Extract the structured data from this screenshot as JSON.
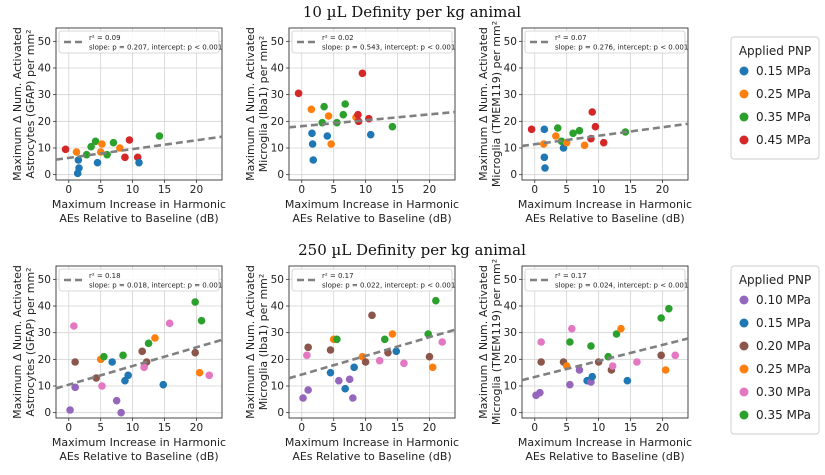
{
  "rows": [
    {
      "title": "10 µL Definity per kg animal",
      "legend_title": "Applied PNP",
      "legend_entries": [
        {
          "label": "0.15 MPa",
          "color": "#1f77b4"
        },
        {
          "label": "0.25 MPa",
          "color": "#ff7f0e"
        },
        {
          "label": "0.35 MPa",
          "color": "#2ca02c"
        },
        {
          "label": "0.45 MPa",
          "color": "#d62728"
        }
      ]
    },
    {
      "title": "250 µL Definity per kg animal",
      "legend_title": "Applied PNP",
      "legend_entries": [
        {
          "label": "0.10 MPa",
          "color": "#9467bd"
        },
        {
          "label": "0.15 MPa",
          "color": "#1f77b4"
        },
        {
          "label": "0.20 MPa",
          "color": "#8c564b"
        },
        {
          "label": "0.25 MPa",
          "color": "#ff7f0e"
        },
        {
          "label": "0.30 MPa",
          "color": "#e377c2"
        },
        {
          "label": "0.35 MPa",
          "color": "#2ca02c"
        }
      ]
    }
  ],
  "chart_data": [
    {
      "type": "scatter",
      "row": 0,
      "col": 0,
      "ylabel_line1": "Maximum Δ Num. Activated",
      "ylabel_line2": "Astrocytes (GFAP) per mm²",
      "xlabel_line1": "Maximum Increase in Harmonic",
      "xlabel_line2": "AEs Relative to Baseline (dB)",
      "xlim": [
        -2,
        24
      ],
      "ylim": [
        -2,
        55
      ],
      "xticks": [
        0,
        5,
        10,
        15,
        20
      ],
      "yticks": [
        0,
        10,
        20,
        30,
        40,
        50
      ],
      "stats_line1": "r² = 0.09",
      "stats_line2": "slope: p = 0.207, intercept: p < 0.001",
      "fit": {
        "slope": 0.33,
        "intercept": 6.3
      },
      "points": [
        {
          "x": -0.5,
          "y": 9.5,
          "c": "#d62728"
        },
        {
          "x": 2.8,
          "y": 7.5,
          "c": "#2ca02c"
        },
        {
          "x": 1.5,
          "y": 5.5,
          "c": "#1f77b4"
        },
        {
          "x": 1.6,
          "y": 2.5,
          "c": "#1f77b4"
        },
        {
          "x": 1.4,
          "y": 0.5,
          "c": "#1f77b4"
        },
        {
          "x": 1.2,
          "y": 8.5,
          "c": "#ff7f0e"
        },
        {
          "x": 3.5,
          "y": 10.5,
          "c": "#2ca02c"
        },
        {
          "x": 4.5,
          "y": 4.5,
          "c": "#1f77b4"
        },
        {
          "x": 4.2,
          "y": 12.5,
          "c": "#2ca02c"
        },
        {
          "x": 5.2,
          "y": 11.5,
          "c": "#ff7f0e"
        },
        {
          "x": 6.0,
          "y": 7.5,
          "c": "#2ca02c"
        },
        {
          "x": 7.0,
          "y": 12.0,
          "c": "#2ca02c"
        },
        {
          "x": 8.0,
          "y": 10.0,
          "c": "#ff7f0e"
        },
        {
          "x": 8.8,
          "y": 6.5,
          "c": "#d62728"
        },
        {
          "x": 9.5,
          "y": 13.0,
          "c": "#d62728"
        },
        {
          "x": 10.8,
          "y": 6.5,
          "c": "#d62728"
        },
        {
          "x": 11.0,
          "y": 4.5,
          "c": "#1f77b4"
        },
        {
          "x": 14.2,
          "y": 14.5,
          "c": "#2ca02c"
        },
        {
          "x": 5.0,
          "y": 8.5,
          "c": "#ff7f0e"
        }
      ]
    },
    {
      "type": "scatter",
      "row": 0,
      "col": 1,
      "ylabel_line1": "Maximum Δ Num. Activated",
      "ylabel_line2": "Microglia (Iba1) per mm²",
      "xlabel_line1": "Maximum Increase in Harmonic",
      "xlabel_line2": "AEs Relative to Baseline (dB)",
      "xlim": [
        -2,
        24
      ],
      "ylim": [
        -2,
        55
      ],
      "xticks": [
        0,
        5,
        10,
        15,
        20
      ],
      "yticks": [
        0,
        10,
        20,
        30,
        40,
        50
      ],
      "stats_line1": "r² = 0.02",
      "stats_line2": "slope: p = 0.543, intercept: p < 0.001",
      "fit": {
        "slope": 0.22,
        "intercept": 18.2
      },
      "points": [
        {
          "x": -0.5,
          "y": 30.5,
          "c": "#d62728"
        },
        {
          "x": 1.5,
          "y": 24.5,
          "c": "#ff7f0e"
        },
        {
          "x": 1.6,
          "y": 15.5,
          "c": "#1f77b4"
        },
        {
          "x": 1.7,
          "y": 11.5,
          "c": "#1f77b4"
        },
        {
          "x": 1.8,
          "y": 5.5,
          "c": "#1f77b4"
        },
        {
          "x": 3.5,
          "y": 25.5,
          "c": "#2ca02c"
        },
        {
          "x": 3.2,
          "y": 19.5,
          "c": "#2ca02c"
        },
        {
          "x": 4.2,
          "y": 22.0,
          "c": "#ff7f0e"
        },
        {
          "x": 4.0,
          "y": 14.5,
          "c": "#1f77b4"
        },
        {
          "x": 4.6,
          "y": 11.5,
          "c": "#ff7f0e"
        },
        {
          "x": 5.5,
          "y": 19.5,
          "c": "#2ca02c"
        },
        {
          "x": 6.5,
          "y": 22.5,
          "c": "#2ca02c"
        },
        {
          "x": 6.8,
          "y": 26.5,
          "c": "#2ca02c"
        },
        {
          "x": 8.5,
          "y": 21.5,
          "c": "#ff7f0e"
        },
        {
          "x": 8.8,
          "y": 22.5,
          "c": "#d62728"
        },
        {
          "x": 9.5,
          "y": 38.0,
          "c": "#d62728"
        },
        {
          "x": 10.5,
          "y": 21.0,
          "c": "#d62728"
        },
        {
          "x": 10.8,
          "y": 15.0,
          "c": "#1f77b4"
        },
        {
          "x": 14.2,
          "y": 18.0,
          "c": "#2ca02c"
        },
        {
          "x": 8.9,
          "y": 20.0,
          "c": "#d62728"
        }
      ]
    },
    {
      "type": "scatter",
      "row": 0,
      "col": 2,
      "ylabel_line1": "Maximum Δ Num. Activated",
      "ylabel_line2": "Microglia (TMEM119) per mm²",
      "xlabel_line1": "Maximum Increase in Harmonic",
      "xlabel_line2": "AEs Relative to Baseline (dB)",
      "xlim": [
        -2,
        24
      ],
      "ylim": [
        -2,
        55
      ],
      "xticks": [
        0,
        5,
        10,
        15,
        20
      ],
      "yticks": [
        0,
        10,
        20,
        30,
        40,
        50
      ],
      "stats_line1": "r² = 0.07",
      "stats_line2": "slope: p = 0.276, intercept: p < 0.001",
      "fit": {
        "slope": 0.32,
        "intercept": 11.4
      },
      "points": [
        {
          "x": -0.5,
          "y": 17.0,
          "c": "#d62728"
        },
        {
          "x": 1.5,
          "y": 17.0,
          "c": "#1f77b4"
        },
        {
          "x": 1.4,
          "y": 11.5,
          "c": "#ff7f0e"
        },
        {
          "x": 1.5,
          "y": 6.5,
          "c": "#1f77b4"
        },
        {
          "x": 1.6,
          "y": 2.5,
          "c": "#1f77b4"
        },
        {
          "x": 3.3,
          "y": 14.5,
          "c": "#ff7f0e"
        },
        {
          "x": 3.6,
          "y": 17.5,
          "c": "#2ca02c"
        },
        {
          "x": 4.2,
          "y": 12.5,
          "c": "#2ca02c"
        },
        {
          "x": 4.5,
          "y": 10.0,
          "c": "#1f77b4"
        },
        {
          "x": 5.0,
          "y": 12.0,
          "c": "#ff7f0e"
        },
        {
          "x": 6.0,
          "y": 15.5,
          "c": "#2ca02c"
        },
        {
          "x": 7.0,
          "y": 16.5,
          "c": "#2ca02c"
        },
        {
          "x": 7.8,
          "y": 11.0,
          "c": "#ff7f0e"
        },
        {
          "x": 8.8,
          "y": 13.5,
          "c": "#d62728"
        },
        {
          "x": 9.0,
          "y": 23.5,
          "c": "#d62728"
        },
        {
          "x": 9.5,
          "y": 18.0,
          "c": "#d62728"
        },
        {
          "x": 10.8,
          "y": 12.0,
          "c": "#d62728"
        },
        {
          "x": 14.2,
          "y": 16.0,
          "c": "#2ca02c"
        }
      ]
    },
    {
      "type": "scatter",
      "row": 1,
      "col": 0,
      "ylabel_line1": "Maximum Δ Num. Activated",
      "ylabel_line2": "Astrocytes (GFAP) per mm²",
      "xlabel_line1": "Maximum Increase in Harmonic",
      "xlabel_line2": "AEs Relative to Baseline (dB)",
      "xlim": [
        -2,
        24
      ],
      "ylim": [
        -2,
        55
      ],
      "xticks": [
        0,
        5,
        10,
        15,
        20
      ],
      "yticks": [
        0,
        10,
        20,
        30,
        40,
        50
      ],
      "stats_line1": "r² = 0.18",
      "stats_line2": "slope: p = 0.018, intercept: p = 0.001",
      "fit": {
        "slope": 0.7,
        "intercept": 10.5
      },
      "points": [
        {
          "x": 0.2,
          "y": 1.0,
          "c": "#9467bd"
        },
        {
          "x": 0.8,
          "y": 32.5,
          "c": "#e377c2"
        },
        {
          "x": 1.0,
          "y": 19.0,
          "c": "#8c564b"
        },
        {
          "x": 1.0,
          "y": 9.5,
          "c": "#9467bd"
        },
        {
          "x": 4.3,
          "y": 13.0,
          "c": "#8c564b"
        },
        {
          "x": 5.0,
          "y": 20.0,
          "c": "#ff7f0e"
        },
        {
          "x": 5.5,
          "y": 21.0,
          "c": "#2ca02c"
        },
        {
          "x": 5.2,
          "y": 10.0,
          "c": "#e377c2"
        },
        {
          "x": 6.8,
          "y": 19.0,
          "c": "#1f77b4"
        },
        {
          "x": 7.5,
          "y": 4.5,
          "c": "#9467bd"
        },
        {
          "x": 8.2,
          "y": 0.0,
          "c": "#9467bd"
        },
        {
          "x": 8.5,
          "y": 21.5,
          "c": "#2ca02c"
        },
        {
          "x": 8.8,
          "y": 12.0,
          "c": "#1f77b4"
        },
        {
          "x": 9.3,
          "y": 14.0,
          "c": "#1f77b4"
        },
        {
          "x": 11.5,
          "y": 23.0,
          "c": "#8c564b"
        },
        {
          "x": 12.2,
          "y": 19.0,
          "c": "#8c564b"
        },
        {
          "x": 12.5,
          "y": 26.0,
          "c": "#2ca02c"
        },
        {
          "x": 13.5,
          "y": 28.0,
          "c": "#ff7f0e"
        },
        {
          "x": 14.8,
          "y": 10.5,
          "c": "#1f77b4"
        },
        {
          "x": 15.8,
          "y": 33.5,
          "c": "#e377c2"
        },
        {
          "x": 19.8,
          "y": 22.5,
          "c": "#8c564b"
        },
        {
          "x": 19.8,
          "y": 41.5,
          "c": "#2ca02c"
        },
        {
          "x": 20.5,
          "y": 15.0,
          "c": "#ff7f0e"
        },
        {
          "x": 20.8,
          "y": 34.5,
          "c": "#2ca02c"
        },
        {
          "x": 22.0,
          "y": 14.0,
          "c": "#e377c2"
        },
        {
          "x": 11.8,
          "y": 17.0,
          "c": "#e377c2"
        }
      ]
    },
    {
      "type": "scatter",
      "row": 1,
      "col": 1,
      "ylabel_line1": "Maximum Δ Num. Activated",
      "ylabel_line2": "Microglia (Iba1) per mm²",
      "xlabel_line1": "Maximum Increase in Harmonic",
      "xlabel_line2": "AEs Relative to Baseline (dB)",
      "xlim": [
        -2,
        24
      ],
      "ylim": [
        -2,
        55
      ],
      "xticks": [
        0,
        5,
        10,
        15,
        20
      ],
      "yticks": [
        0,
        10,
        20,
        30,
        40,
        50
      ],
      "stats_line1": "r² = 0.17",
      "stats_line2": "slope: p = 0.022, intercept: p < 0.001",
      "fit": {
        "slope": 0.7,
        "intercept": 14.3
      },
      "points": [
        {
          "x": 0.2,
          "y": 5.5,
          "c": "#9467bd"
        },
        {
          "x": 0.8,
          "y": 21.5,
          "c": "#e377c2"
        },
        {
          "x": 1.0,
          "y": 24.5,
          "c": "#8c564b"
        },
        {
          "x": 1.0,
          "y": 8.5,
          "c": "#9467bd"
        },
        {
          "x": 4.5,
          "y": 23.5,
          "c": "#8c564b"
        },
        {
          "x": 5.0,
          "y": 27.5,
          "c": "#ff7f0e"
        },
        {
          "x": 5.5,
          "y": 27.5,
          "c": "#2ca02c"
        },
        {
          "x": 4.5,
          "y": 15.0,
          "c": "#1f77b4"
        },
        {
          "x": 5.8,
          "y": 12.0,
          "c": "#9467bd"
        },
        {
          "x": 6.8,
          "y": 9.0,
          "c": "#1f77b4"
        },
        {
          "x": 7.5,
          "y": 12.5,
          "c": "#9467bd"
        },
        {
          "x": 8.2,
          "y": 17.0,
          "c": "#1f77b4"
        },
        {
          "x": 8.0,
          "y": 5.5,
          "c": "#9467bd"
        },
        {
          "x": 9.5,
          "y": 21.0,
          "c": "#ff7f0e"
        },
        {
          "x": 10.0,
          "y": 19.0,
          "c": "#8c564b"
        },
        {
          "x": 11.0,
          "y": 36.5,
          "c": "#8c564b"
        },
        {
          "x": 12.2,
          "y": 19.5,
          "c": "#e377c2"
        },
        {
          "x": 13.5,
          "y": 22.5,
          "c": "#8c564b"
        },
        {
          "x": 14.2,
          "y": 29.5,
          "c": "#ff7f0e"
        },
        {
          "x": 14.8,
          "y": 23.0,
          "c": "#1f77b4"
        },
        {
          "x": 16.0,
          "y": 18.5,
          "c": "#e377c2"
        },
        {
          "x": 19.8,
          "y": 29.5,
          "c": "#2ca02c"
        },
        {
          "x": 20.0,
          "y": 21.0,
          "c": "#8c564b"
        },
        {
          "x": 20.5,
          "y": 17.0,
          "c": "#ff7f0e"
        },
        {
          "x": 21.0,
          "y": 42.0,
          "c": "#2ca02c"
        },
        {
          "x": 22.0,
          "y": 26.5,
          "c": "#e377c2"
        },
        {
          "x": 13.0,
          "y": 27.5,
          "c": "#2ca02c"
        }
      ]
    },
    {
      "type": "scatter",
      "row": 1,
      "col": 2,
      "ylabel_line1": "Maximum Δ Num. Activated",
      "ylabel_line2": "Microglia (TMEM119) per mm²",
      "xlabel_line1": "Maximum Increase in Harmonic",
      "xlabel_line2": "AEs Relative to Baseline (dB)",
      "xlim": [
        -2,
        24
      ],
      "ylim": [
        -2,
        55
      ],
      "xticks": [
        0,
        5,
        10,
        15,
        20
      ],
      "yticks": [
        0,
        10,
        20,
        30,
        40,
        50
      ],
      "stats_line1": "r² = 0.17",
      "stats_line2": "slope: p = 0.024, intercept: p < 0.001",
      "fit": {
        "slope": 0.6,
        "intercept": 13.4
      },
      "points": [
        {
          "x": 0.2,
          "y": 6.5,
          "c": "#9467bd"
        },
        {
          "x": 0.8,
          "y": 7.5,
          "c": "#9467bd"
        },
        {
          "x": 1.0,
          "y": 26.5,
          "c": "#e377c2"
        },
        {
          "x": 1.0,
          "y": 19.0,
          "c": "#8c564b"
        },
        {
          "x": 4.5,
          "y": 19.0,
          "c": "#8c564b"
        },
        {
          "x": 5.0,
          "y": 17.5,
          "c": "#ff7f0e"
        },
        {
          "x": 5.5,
          "y": 26.5,
          "c": "#2ca02c"
        },
        {
          "x": 5.8,
          "y": 31.5,
          "c": "#e377c2"
        },
        {
          "x": 5.5,
          "y": 10.5,
          "c": "#9467bd"
        },
        {
          "x": 7.0,
          "y": 16.0,
          "c": "#9467bd"
        },
        {
          "x": 8.2,
          "y": 12.0,
          "c": "#1f77b4"
        },
        {
          "x": 8.8,
          "y": 25.0,
          "c": "#2ca02c"
        },
        {
          "x": 8.8,
          "y": 11.5,
          "c": "#9467bd"
        },
        {
          "x": 9.0,
          "y": 13.5,
          "c": "#1f77b4"
        },
        {
          "x": 10.0,
          "y": 19.0,
          "c": "#8c564b"
        },
        {
          "x": 12.0,
          "y": 16.0,
          "c": "#8c564b"
        },
        {
          "x": 12.2,
          "y": 17.5,
          "c": "#e377c2"
        },
        {
          "x": 12.8,
          "y": 29.5,
          "c": "#2ca02c"
        },
        {
          "x": 13.5,
          "y": 31.5,
          "c": "#ff7f0e"
        },
        {
          "x": 14.5,
          "y": 12.0,
          "c": "#1f77b4"
        },
        {
          "x": 16.0,
          "y": 19.0,
          "c": "#e377c2"
        },
        {
          "x": 19.8,
          "y": 21.5,
          "c": "#8c564b"
        },
        {
          "x": 19.8,
          "y": 35.5,
          "c": "#2ca02c"
        },
        {
          "x": 20.5,
          "y": 16.0,
          "c": "#ff7f0e"
        },
        {
          "x": 21.0,
          "y": 39.0,
          "c": "#2ca02c"
        },
        {
          "x": 22.0,
          "y": 21.5,
          "c": "#e377c2"
        },
        {
          "x": 11.5,
          "y": 21.0,
          "c": "#2ca02c"
        }
      ]
    }
  ]
}
